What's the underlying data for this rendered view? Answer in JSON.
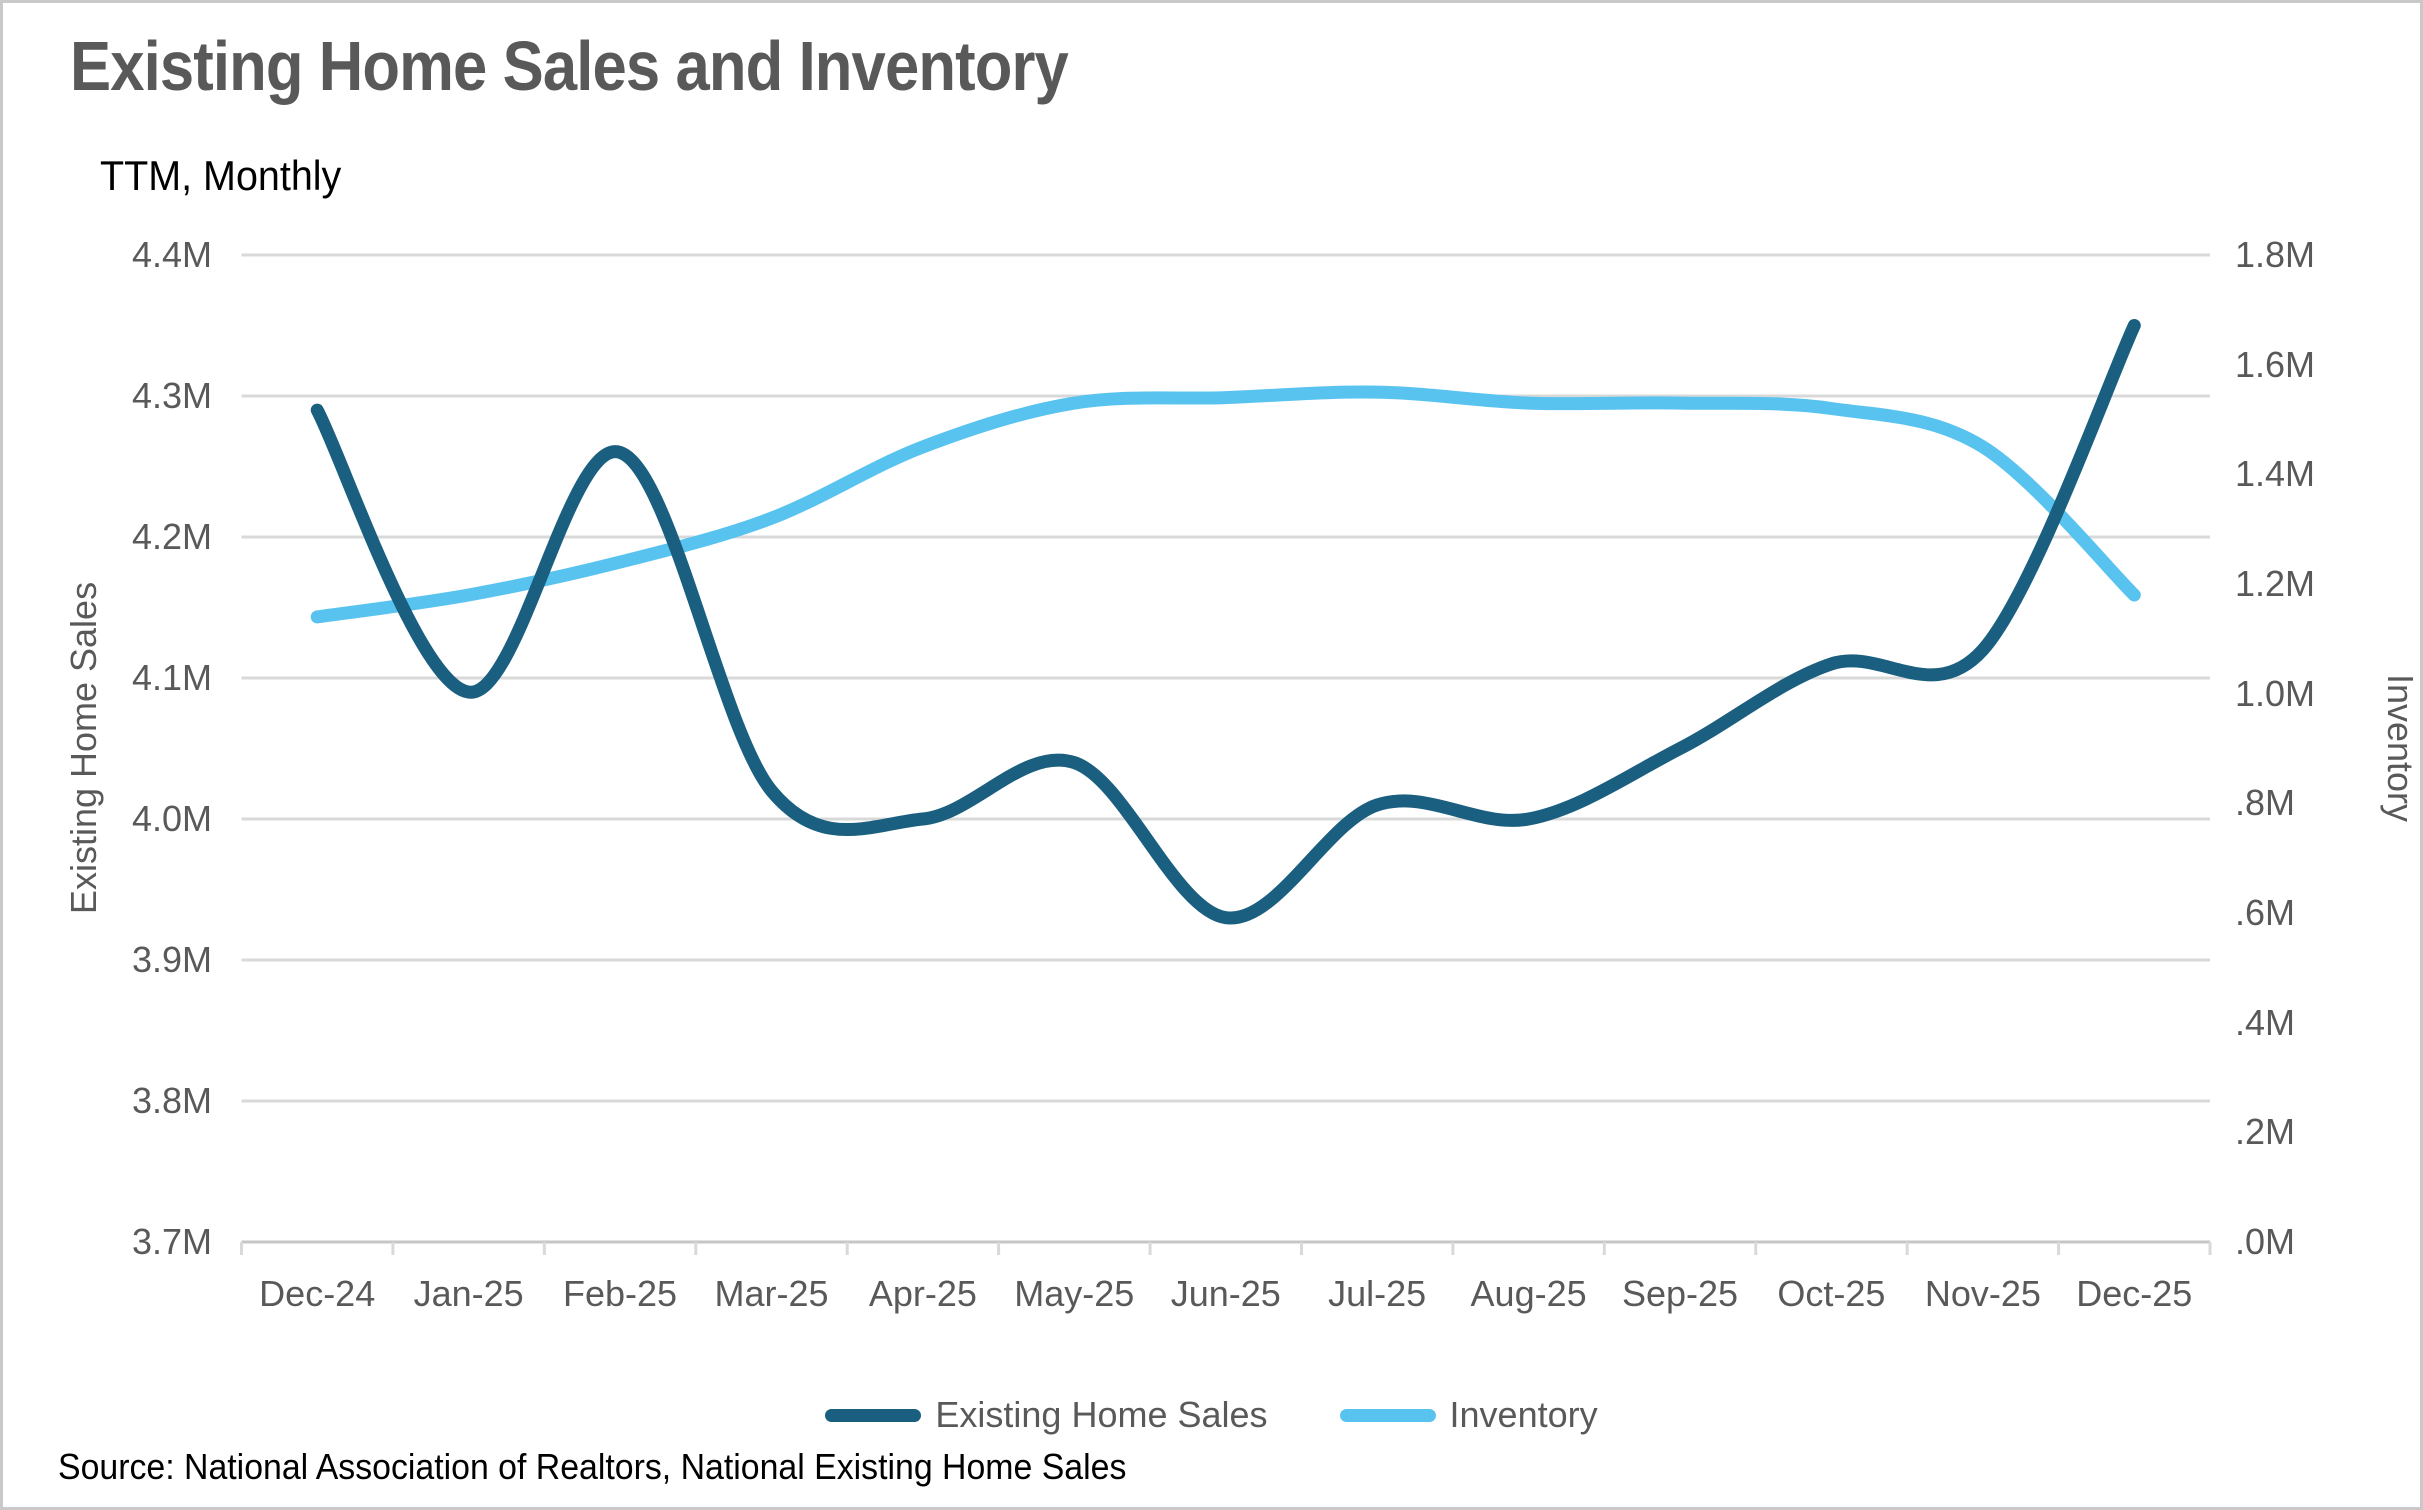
{
  "title": "Existing Home Sales and Inventory",
  "subtitle": "TTM, Monthly",
  "source": "Source: National Association of Realtors, National Existing Home Sales",
  "colors": {
    "sales_line": "#1A5F7F",
    "inventory_line": "#59C3F0",
    "gridline": "#D9D9D9",
    "axis_line": "#C6C6C6",
    "text_gray": "#595959",
    "text_black": "#000000",
    "border": "#C9C9C9"
  },
  "chart_data": {
    "type": "line",
    "smooth": true,
    "grid": true,
    "legend_position": "bottom",
    "categories": [
      "Dec-24",
      "Jan-25",
      "Feb-25",
      "Mar-25",
      "Apr-25",
      "May-25",
      "Jun-25",
      "Jul-25",
      "Aug-25",
      "Sep-25",
      "Oct-25",
      "Nov-25",
      "Dec-25"
    ],
    "series": [
      {
        "name": "Existing Home Sales",
        "axis": "left",
        "color": "#1A5F7F",
        "values": [
          4.29,
          4.09,
          4.26,
          4.02,
          4.0,
          4.04,
          3.93,
          4.01,
          4.0,
          4.05,
          4.11,
          4.12,
          4.35
        ]
      },
      {
        "name": "Inventory",
        "axis": "right",
        "color": "#59C3F0",
        "values": [
          1.14,
          1.18,
          1.24,
          1.32,
          1.45,
          1.53,
          1.54,
          1.55,
          1.53,
          1.53,
          1.52,
          1.45,
          1.18
        ]
      }
    ],
    "left_axis": {
      "title": "Existing Home Sales",
      "min": 3.7,
      "max": 4.4,
      "tick_labels": [
        "3.7M",
        "3.8M",
        "3.9M",
        "4.0M",
        "4.1M",
        "4.2M",
        "4.3M",
        "4.4M"
      ]
    },
    "right_axis": {
      "title": "Inventory",
      "min": 0.0,
      "max": 1.8,
      "tick_labels": [
        ".0M",
        ".2M",
        ".4M",
        ".6M",
        ".8M",
        "1.0M",
        "1.2M",
        "1.4M",
        "1.6M",
        "1.8M"
      ]
    }
  }
}
